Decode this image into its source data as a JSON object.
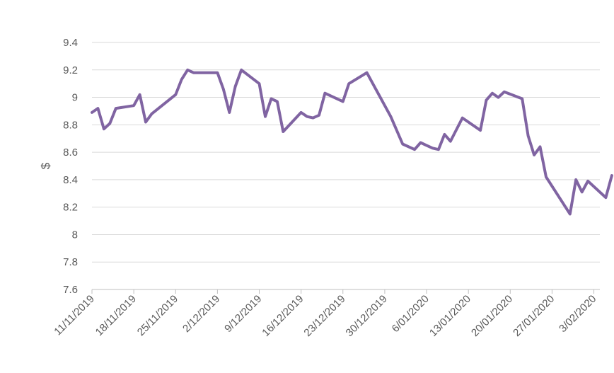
{
  "chart_data": {
    "type": "line",
    "title": "",
    "xlabel": "",
    "ylabel": "$",
    "ylim": [
      7.6,
      9.4
    ],
    "y_ticks": [
      "7.6",
      "7.8",
      "8",
      "8.2",
      "8.4",
      "8.6",
      "8.8",
      "9",
      "9.2",
      "9.4"
    ],
    "x_range": [
      "2019-11-11",
      "2020-02-04"
    ],
    "x_ticks": [
      {
        "date": "2019-11-11",
        "label": "11/11/2019"
      },
      {
        "date": "2019-11-18",
        "label": "18/11/2019"
      },
      {
        "date": "2019-11-25",
        "label": "25/11/2019"
      },
      {
        "date": "2019-12-02",
        "label": "2/12/2019"
      },
      {
        "date": "2019-12-09",
        "label": "9/12/2019"
      },
      {
        "date": "2019-12-16",
        "label": "16/12/2019"
      },
      {
        "date": "2019-12-23",
        "label": "23/12/2019"
      },
      {
        "date": "2019-12-30",
        "label": "30/12/2019"
      },
      {
        "date": "2020-01-06",
        "label": "6/01/2020"
      },
      {
        "date": "2020-01-13",
        "label": "13/01/2020"
      },
      {
        "date": "2020-01-20",
        "label": "20/01/2020"
      },
      {
        "date": "2020-01-27",
        "label": "27/01/2020"
      },
      {
        "date": "2020-02-03",
        "label": "3/02/2020"
      }
    ],
    "grid": "horizontal",
    "legend": "none",
    "color": "#8064a2",
    "series": [
      {
        "points": [
          [
            "2019-11-11",
            8.89
          ],
          [
            "2019-11-12",
            8.92
          ],
          [
            "2019-11-13",
            8.77
          ],
          [
            "2019-11-14",
            8.81
          ],
          [
            "2019-11-15",
            8.92
          ],
          [
            "2019-11-18",
            8.94
          ],
          [
            "2019-11-19",
            9.02
          ],
          [
            "2019-11-20",
            8.82
          ],
          [
            "2019-11-21",
            8.88
          ],
          [
            "2019-11-25",
            9.02
          ],
          [
            "2019-11-26",
            9.13
          ],
          [
            "2019-11-27",
            9.2
          ],
          [
            "2019-11-28",
            9.18
          ],
          [
            "2019-12-02",
            9.18
          ],
          [
            "2019-12-03",
            9.06
          ],
          [
            "2019-12-04",
            8.89
          ],
          [
            "2019-12-05",
            9.08
          ],
          [
            "2019-12-06",
            9.2
          ],
          [
            "2019-12-09",
            9.1
          ],
          [
            "2019-12-10",
            8.86
          ],
          [
            "2019-12-11",
            8.99
          ],
          [
            "2019-12-12",
            8.97
          ],
          [
            "2019-12-13",
            8.75
          ],
          [
            "2019-12-16",
            8.89
          ],
          [
            "2019-12-17",
            8.86
          ],
          [
            "2019-12-18",
            8.85
          ],
          [
            "2019-12-19",
            8.87
          ],
          [
            "2019-12-20",
            9.03
          ],
          [
            "2019-12-23",
            8.97
          ],
          [
            "2019-12-24",
            9.1
          ],
          [
            "2019-12-27",
            9.18
          ],
          [
            "2019-12-31",
            8.86
          ],
          [
            "2020-01-02",
            8.66
          ],
          [
            "2020-01-04",
            8.62
          ],
          [
            "2020-01-05",
            8.67
          ],
          [
            "2020-01-06",
            8.65
          ],
          [
            "2020-01-07",
            8.63
          ],
          [
            "2020-01-08",
            8.62
          ],
          [
            "2020-01-09",
            8.73
          ],
          [
            "2020-01-10",
            8.68
          ],
          [
            "2020-01-12",
            8.85
          ],
          [
            "2020-01-15",
            8.76
          ],
          [
            "2020-01-16",
            8.98
          ],
          [
            "2020-01-17",
            9.03
          ],
          [
            "2020-01-18",
            9.0
          ],
          [
            "2020-01-19",
            9.04
          ],
          [
            "2020-01-22",
            8.99
          ],
          [
            "2020-01-23",
            8.72
          ],
          [
            "2020-01-24",
            8.58
          ],
          [
            "2020-01-25",
            8.64
          ],
          [
            "2020-01-26",
            8.42
          ],
          [
            "2020-01-30",
            8.15
          ],
          [
            "2020-01-31",
            8.4
          ],
          [
            "2020-02-01",
            8.31
          ],
          [
            "2020-02-02",
            8.39
          ],
          [
            "2020-02-05",
            8.27
          ],
          [
            "2020-02-06",
            8.43
          ]
        ]
      }
    ]
  }
}
